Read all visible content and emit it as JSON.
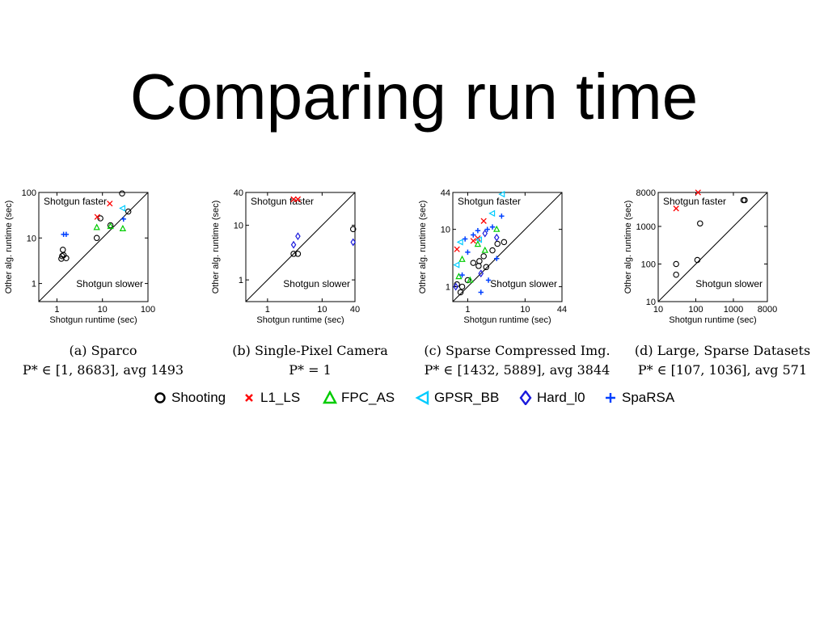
{
  "slide": {
    "title": "Comparing run time"
  },
  "colors": {
    "Shooting": "#000000",
    "L1_LS": "#ff0000",
    "FPC_AS": "#00cc00",
    "GPSR_BB": "#00ccff",
    "Hard_l0": "#1a1adc",
    "SpaRSA": "#0040ff"
  },
  "legend": [
    {
      "name": "Shooting",
      "marker": "circle"
    },
    {
      "name": "L1_LS",
      "marker": "x"
    },
    {
      "name": "FPC_AS",
      "marker": "triangle-up"
    },
    {
      "name": "GPSR_BB",
      "marker": "triangle-left"
    },
    {
      "name": "Hard_l0",
      "marker": "diamond"
    },
    {
      "name": "SpaRSA",
      "marker": "plus"
    }
  ],
  "chart_data": [
    {
      "type": "scatter",
      "caption": "(a) Sparco",
      "subcaption": "P* ∈ [1, 8683], avg 1493",
      "xlabel": "Shotgun runtime (sec)",
      "ylabel": "Other alg. runtime (sec)",
      "xscale": "log",
      "yscale": "log",
      "xlim": [
        0.4,
        100
      ],
      "ylim": [
        0.4,
        100
      ],
      "xticks": [
        1,
        10,
        100
      ],
      "xticklabels": [
        "1",
        "10",
        "100"
      ],
      "yticks": [
        1,
        10,
        100
      ],
      "yticklabels": [
        "1",
        "10",
        "100"
      ],
      "annotations": {
        "upper": "Shotgun faster",
        "lower": "Shotgun slower"
      },
      "diagonal": true,
      "series": [
        {
          "name": "Shooting",
          "marker": "circle",
          "points": [
            [
              1.35,
              5.5
            ],
            [
              1.3,
              4
            ],
            [
              1.4,
              4.2
            ],
            [
              1.6,
              3.6
            ],
            [
              1.25,
              3.5
            ],
            [
              9,
              27
            ],
            [
              7.5,
              10
            ],
            [
              15,
              19
            ],
            [
              27,
              95
            ],
            [
              37,
              38
            ]
          ]
        },
        {
          "name": "L1_LS",
          "marker": "x",
          "points": [
            [
              7.7,
              29
            ],
            [
              14.5,
              57
            ]
          ]
        },
        {
          "name": "FPC_AS",
          "marker": "triangle-up",
          "points": [
            [
              7.5,
              17
            ],
            [
              15,
              18
            ],
            [
              28,
              16
            ]
          ]
        },
        {
          "name": "GPSR_BB",
          "marker": "triangle-left",
          "points": [
            [
              28,
              45
            ]
          ]
        },
        {
          "name": "Hard_l0",
          "marker": "diamond",
          "points": []
        },
        {
          "name": "SpaRSA",
          "marker": "plus",
          "points": [
            [
              1.4,
              12
            ],
            [
              1.6,
              12
            ],
            [
              29,
              26
            ]
          ]
        }
      ]
    },
    {
      "type": "scatter",
      "caption": "(b) Single-Pixel Camera",
      "subcaption": "P* = 1",
      "xlabel": "Shotgun runtime (sec)",
      "ylabel": "Other alg. runtime (sec)",
      "xscale": "log",
      "yscale": "log",
      "xlim": [
        0.4,
        40
      ],
      "ylim": [
        0.4,
        40
      ],
      "xticks": [
        1,
        10,
        40
      ],
      "xticklabels": [
        "1",
        "10",
        "40"
      ],
      "yticks": [
        1,
        10,
        40
      ],
      "yticklabels": [
        "1",
        "10",
        "40"
      ],
      "annotations": {
        "upper": "Shotgun faster",
        "lower": "Shotgun slower"
      },
      "diagonal": true,
      "series": [
        {
          "name": "Shooting",
          "marker": "circle",
          "points": [
            [
              3,
              3
            ],
            [
              3.6,
              3
            ],
            [
              37,
              8.5
            ]
          ]
        },
        {
          "name": "L1_LS",
          "marker": "x",
          "points": [
            [
              3,
              30
            ],
            [
              3.6,
              30
            ]
          ]
        },
        {
          "name": "FPC_AS",
          "marker": "triangle-up",
          "points": []
        },
        {
          "name": "GPSR_BB",
          "marker": "triangle-left",
          "points": []
        },
        {
          "name": "Hard_l0",
          "marker": "diamond",
          "points": [
            [
              3,
              4.4
            ],
            [
              3.6,
              6.3
            ],
            [
              37,
              4.9
            ]
          ]
        },
        {
          "name": "SpaRSA",
          "marker": "plus",
          "points": []
        }
      ]
    },
    {
      "type": "scatter",
      "caption": "(c) Sparse Compressed Img.",
      "subcaption": "P* ∈ [1432, 5889], avg 3844",
      "xlabel": "Shotgun runtime (sec)",
      "ylabel": "Other alg. runtime (sec)",
      "xscale": "log",
      "yscale": "log",
      "xlim": [
        0.55,
        44
      ],
      "ylim": [
        0.55,
        44
      ],
      "xticks": [
        1,
        10,
        44
      ],
      "xticklabels": [
        "1",
        "10",
        "44"
      ],
      "yticks": [
        1,
        10,
        44
      ],
      "yticklabels": [
        "1",
        "10",
        "44"
      ],
      "annotations": {
        "upper": "Shotgun faster",
        "lower": "Shotgun slower"
      },
      "diagonal": true,
      "series": [
        {
          "name": "Shooting",
          "marker": "circle",
          "points": [
            [
              0.65,
              1.1
            ],
            [
              0.75,
              0.8
            ],
            [
              0.8,
              1
            ],
            [
              1,
              1.3
            ],
            [
              1.25,
              2.6
            ],
            [
              1.55,
              2.3
            ],
            [
              1.6,
              2.8
            ],
            [
              1.9,
              3.4
            ],
            [
              2.1,
              2.2
            ],
            [
              2.7,
              4.3
            ],
            [
              3.3,
              5.6
            ],
            [
              4.3,
              6
            ]
          ]
        },
        {
          "name": "L1_LS",
          "marker": "x",
          "points": [
            [
              0.65,
              4.5
            ],
            [
              1.25,
              6.3
            ],
            [
              1.9,
              14
            ],
            [
              1.5,
              7
            ]
          ]
        },
        {
          "name": "FPC_AS",
          "marker": "triangle-up",
          "points": [
            [
              0.7,
              1.5
            ],
            [
              0.8,
              3
            ],
            [
              1.5,
              5.5
            ],
            [
              2,
              4.3
            ],
            [
              3.2,
              10
            ],
            [
              1.1,
              1.3
            ]
          ]
        },
        {
          "name": "GPSR_BB",
          "marker": "triangle-left",
          "points": [
            [
              0.65,
              2.4
            ],
            [
              0.75,
              6
            ],
            [
              1.6,
              6.6
            ],
            [
              2.7,
              19
            ],
            [
              4,
              41
            ]
          ]
        },
        {
          "name": "Hard_l0",
          "marker": "diamond",
          "points": [
            [
              0.62,
              1
            ],
            [
              1.7,
              1.7
            ],
            [
              2,
              8.5
            ],
            [
              3.2,
              7.2
            ]
          ]
        },
        {
          "name": "SpaRSA",
          "marker": "plus",
          "points": [
            [
              0.8,
              1.6
            ],
            [
              1,
              4
            ],
            [
              0.9,
              6.8
            ],
            [
              1.25,
              8
            ],
            [
              1.5,
              9.5
            ],
            [
              2.2,
              10
            ],
            [
              2.7,
              11
            ],
            [
              3.9,
              17
            ],
            [
              1.7,
              0.8
            ],
            [
              2.3,
              1.3
            ],
            [
              3.2,
              3.1
            ]
          ]
        }
      ]
    },
    {
      "type": "scatter",
      "caption": "(d) Large, Sparse Datasets",
      "subcaption": "P* ∈ [107, 1036], avg 571",
      "xlabel": "Shotgun runtime (sec)",
      "ylabel": "Other alg. runtime (sec)",
      "xscale": "log",
      "yscale": "log",
      "xlim": [
        10,
        8000
      ],
      "ylim": [
        10,
        8000
      ],
      "xticks": [
        10,
        100,
        1000,
        8000
      ],
      "xticklabels": [
        "10",
        "100",
        "1000",
        "8000"
      ],
      "yticks": [
        10,
        100,
        1000,
        8000
      ],
      "yticklabels": [
        "10",
        "100",
        "1000",
        "8000"
      ],
      "annotations": {
        "upper": "Shotgun faster",
        "lower": "Shotgun slower"
      },
      "diagonal": true,
      "series": [
        {
          "name": "Shooting",
          "marker": "circle",
          "points": [
            [
              30,
              100
            ],
            [
              30,
              52
            ],
            [
              110,
              128
            ],
            [
              130,
              1200
            ],
            [
              1850,
              5000
            ],
            [
              2000,
              5000
            ]
          ]
        },
        {
          "name": "L1_LS",
          "marker": "x",
          "points": [
            [
              30,
              3000
            ],
            [
              115,
              8000
            ]
          ]
        },
        {
          "name": "FPC_AS",
          "marker": "triangle-up",
          "points": []
        },
        {
          "name": "GPSR_BB",
          "marker": "triangle-left",
          "points": []
        },
        {
          "name": "Hard_l0",
          "marker": "diamond",
          "points": []
        },
        {
          "name": "SpaRSA",
          "marker": "plus",
          "points": []
        }
      ]
    }
  ]
}
